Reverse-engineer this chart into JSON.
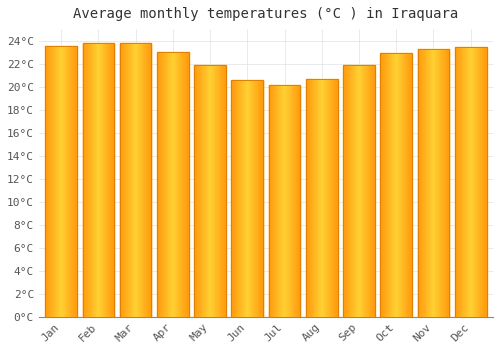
{
  "title": "Average monthly temperatures (°C ) in Iraquara",
  "months": [
    "Jan",
    "Feb",
    "Mar",
    "Apr",
    "May",
    "Jun",
    "Jul",
    "Aug",
    "Sep",
    "Oct",
    "Nov",
    "Dec"
  ],
  "values": [
    23.5,
    23.8,
    23.8,
    23.0,
    21.9,
    20.6,
    20.1,
    20.7,
    21.9,
    22.9,
    23.3,
    23.4
  ],
  "bar_color_face": "#FFB300",
  "bar_color_edge": "#E08000",
  "bar_gradient_light": "#FFD060",
  "background_color": "#FFFFFF",
  "plot_bg_color": "#FFFFFF",
  "grid_color": "#E0E0E8",
  "ylim": [
    0,
    25
  ],
  "yticks": [
    0,
    2,
    4,
    6,
    8,
    10,
    12,
    14,
    16,
    18,
    20,
    22,
    24
  ],
  "ylabel_suffix": "°C",
  "title_fontsize": 10,
  "tick_fontsize": 8,
  "font_family": "monospace",
  "bar_width": 0.85
}
